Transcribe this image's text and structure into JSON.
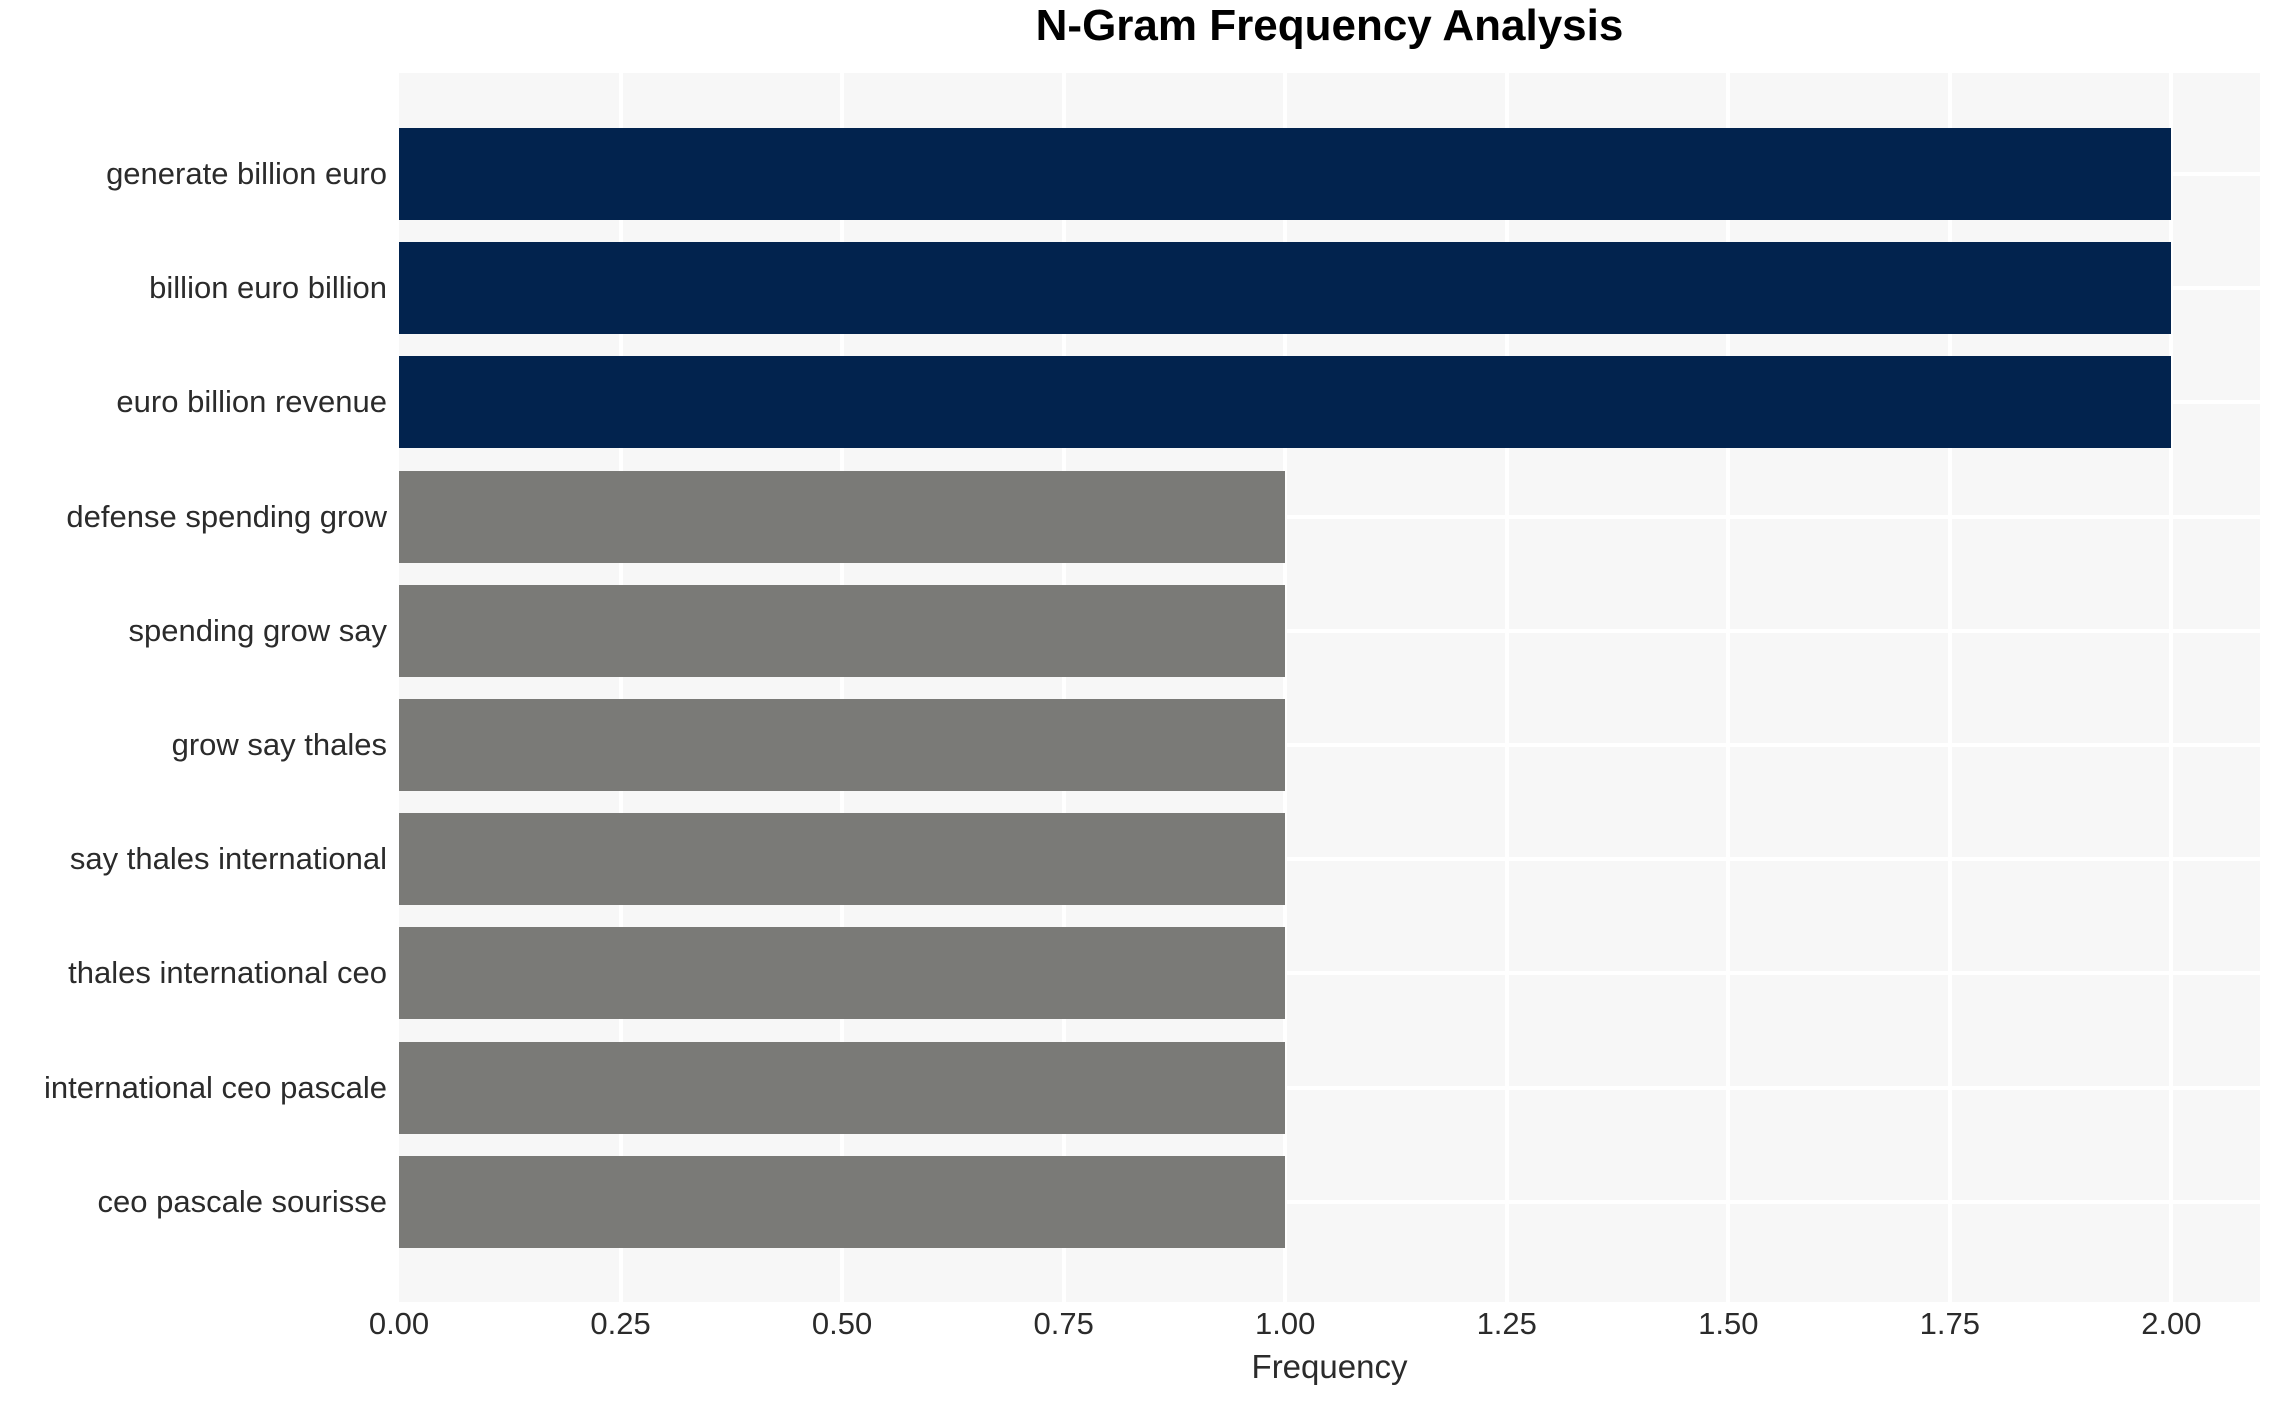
{
  "chart_data": {
    "type": "bar",
    "orientation": "horizontal",
    "title": "N-Gram Frequency Analysis",
    "xlabel": "Frequency",
    "ylabel": "",
    "categories": [
      "generate billion euro",
      "billion euro billion",
      "euro billion revenue",
      "defense spending grow",
      "spending grow say",
      "grow say thales",
      "say thales international",
      "thales international ceo",
      "international ceo pascale",
      "ceo pascale sourisse"
    ],
    "values": [
      2,
      2,
      2,
      1,
      1,
      1,
      1,
      1,
      1,
      1
    ],
    "bar_colors": [
      "#02234e",
      "#02234e",
      "#02234e",
      "#7a7a77",
      "#7a7a77",
      "#7a7a77",
      "#7a7a77",
      "#7a7a77",
      "#7a7a77",
      "#7a7a77"
    ],
    "xlim": [
      0,
      2.1
    ],
    "xticks": [
      "0.00",
      "0.25",
      "0.50",
      "0.75",
      "1.00",
      "1.25",
      "1.50",
      "1.75",
      "2.00"
    ],
    "grid": "on",
    "legend": "none",
    "colors": {
      "highlight_bar": "#02234e",
      "base_bar": "#7a7a77",
      "plot_background": "#f7f7f7",
      "gridline": "#ffffff",
      "figure_background": "#ffffff",
      "text": "#2b2b2b",
      "title_text": "#000000"
    }
  }
}
